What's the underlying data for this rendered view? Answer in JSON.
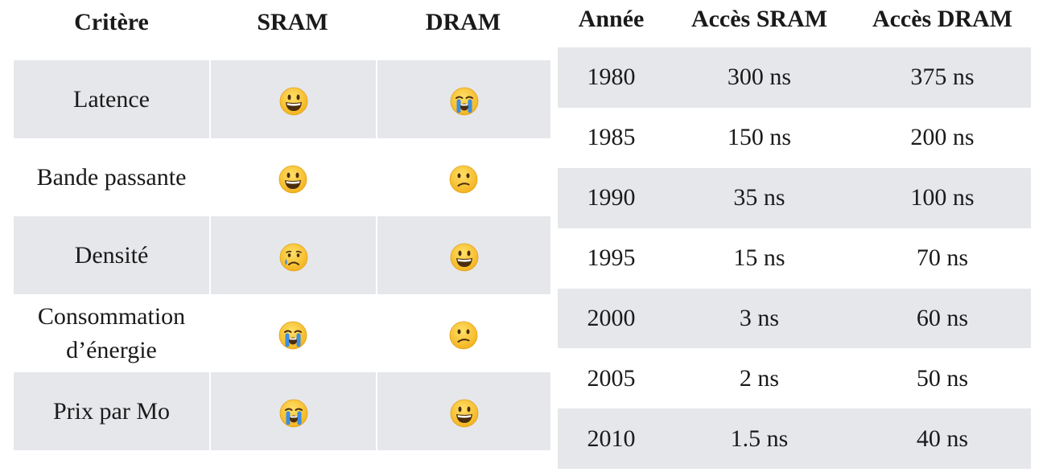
{
  "comparison": {
    "headers": [
      "Critère",
      "SRAM",
      "DRAM"
    ],
    "rows": [
      {
        "criterion": "Latence",
        "sram_icon": "grinning-face-icon",
        "dram_icon": "loudly-crying-face-icon"
      },
      {
        "criterion": "Bande passante",
        "sram_icon": "grinning-face-icon",
        "dram_icon": "confused-face-icon"
      },
      {
        "criterion": "Densité",
        "sram_icon": "crying-face-icon",
        "dram_icon": "grinning-face-icon"
      },
      {
        "criterion_line1": "Consommation",
        "criterion_line2": "d’énergie",
        "sram_icon": "loudly-crying-face-icon",
        "dram_icon": "confused-face-icon"
      },
      {
        "criterion": "Prix par Mo",
        "sram_icon": "loudly-crying-face-icon",
        "dram_icon": "grinning-face-icon"
      }
    ]
  },
  "timeline": {
    "headers": [
      "Année",
      "Accès SRAM",
      "Accès DRAM"
    ],
    "rows": [
      {
        "year": "1980",
        "sram": "300 ns",
        "dram": "375 ns"
      },
      {
        "year": "1985",
        "sram": "150 ns",
        "dram": "200 ns"
      },
      {
        "year": "1990",
        "sram": "35 ns",
        "dram": "100 ns"
      },
      {
        "year": "1995",
        "sram": "15 ns",
        "dram": "70 ns"
      },
      {
        "year": "2000",
        "sram": "3 ns",
        "dram": "60 ns"
      },
      {
        "year": "2005",
        "sram": "2 ns",
        "dram": "50 ns"
      },
      {
        "year": "2010",
        "sram": "1.5 ns",
        "dram": "40 ns"
      }
    ]
  },
  "colors": {
    "row_shade": "#e6e7eb",
    "face_yellow": "#f6c02c",
    "tear_blue": "#3a8ee6"
  }
}
